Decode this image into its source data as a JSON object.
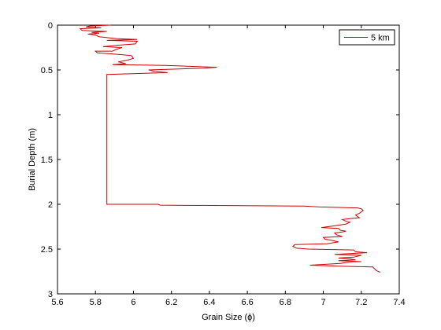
{
  "chart_data": {
    "type": "line",
    "title": "",
    "xlabel": "Grain Size (ɸ)",
    "ylabel": "Burial Depth (m)",
    "xlim": [
      5.6,
      7.4
    ],
    "ylim": [
      0,
      3
    ],
    "y_reversed": true,
    "grid": false,
    "legend_position": "top-right",
    "x_ticks": [
      "5.6",
      "5.8",
      "6",
      "6.2",
      "6.4",
      "6.6",
      "6.8",
      "7",
      "7.2",
      "7.4"
    ],
    "y_ticks": [
      "0",
      "0.5",
      "1",
      "1.5",
      "2",
      "2.5",
      "3"
    ],
    "series": [
      {
        "name": "5 km",
        "color": "#cc0000",
        "points": [
          [
            5.88,
            0.0
          ],
          [
            5.77,
            0.01
          ],
          [
            5.75,
            0.02
          ],
          [
            5.83,
            0.03
          ],
          [
            5.72,
            0.04
          ],
          [
            5.73,
            0.06
          ],
          [
            5.86,
            0.07
          ],
          [
            5.78,
            0.08
          ],
          [
            5.82,
            0.09
          ],
          [
            5.76,
            0.1
          ],
          [
            5.8,
            0.11
          ],
          [
            5.82,
            0.13
          ],
          [
            5.91,
            0.15
          ],
          [
            6.02,
            0.16
          ],
          [
            5.86,
            0.17
          ],
          [
            6.02,
            0.18
          ],
          [
            6.01,
            0.21
          ],
          [
            5.94,
            0.22
          ],
          [
            5.84,
            0.24
          ],
          [
            5.94,
            0.25
          ],
          [
            5.91,
            0.27
          ],
          [
            5.89,
            0.29
          ],
          [
            5.8,
            0.29
          ],
          [
            5.81,
            0.31
          ],
          [
            5.94,
            0.33
          ],
          [
            5.99,
            0.34
          ],
          [
            6.0,
            0.37
          ],
          [
            5.97,
            0.39
          ],
          [
            5.92,
            0.41
          ],
          [
            5.96,
            0.43
          ],
          [
            5.89,
            0.44
          ],
          [
            6.17,
            0.45
          ],
          [
            6.44,
            0.47
          ],
          [
            6.37,
            0.48
          ],
          [
            6.08,
            0.5
          ],
          [
            6.12,
            0.52
          ],
          [
            6.18,
            0.53
          ],
          [
            5.86,
            0.55
          ],
          [
            5.86,
            1.0
          ],
          [
            5.86,
            1.5
          ],
          [
            5.86,
            2.0
          ],
          [
            6.13,
            2.0
          ],
          [
            6.14,
            2.01
          ],
          [
            6.9,
            2.02
          ],
          [
            6.98,
            2.03
          ],
          [
            7.18,
            2.04
          ],
          [
            7.2,
            2.05
          ],
          [
            7.21,
            2.07
          ],
          [
            7.19,
            2.1
          ],
          [
            7.17,
            2.12
          ],
          [
            7.19,
            2.15
          ],
          [
            7.14,
            2.16
          ],
          [
            7.1,
            2.17
          ],
          [
            7.12,
            2.19
          ],
          [
            7.14,
            2.2
          ],
          [
            7.12,
            2.22
          ],
          [
            7.06,
            2.24
          ],
          [
            6.99,
            2.26
          ],
          [
            7.08,
            2.27
          ],
          [
            7.09,
            2.29
          ],
          [
            7.12,
            2.3
          ],
          [
            7.1,
            2.31
          ],
          [
            7.06,
            2.32
          ],
          [
            7.07,
            2.34
          ],
          [
            7.1,
            2.36
          ],
          [
            7.0,
            2.37
          ],
          [
            7.01,
            2.39
          ],
          [
            7.04,
            2.4
          ],
          [
            7.08,
            2.42
          ],
          [
            7.02,
            2.44
          ],
          [
            6.85,
            2.45
          ],
          [
            6.84,
            2.47
          ],
          [
            6.86,
            2.49
          ],
          [
            6.92,
            2.5
          ],
          [
            7.16,
            2.51
          ],
          [
            7.17,
            2.53
          ],
          [
            7.23,
            2.54
          ],
          [
            7.14,
            2.55
          ],
          [
            7.06,
            2.56
          ],
          [
            7.2,
            2.57
          ],
          [
            7.16,
            2.59
          ],
          [
            7.08,
            2.6
          ],
          [
            7.14,
            2.61
          ],
          [
            7.17,
            2.62
          ],
          [
            7.08,
            2.63
          ],
          [
            7.2,
            2.64
          ],
          [
            7.12,
            2.65
          ],
          [
            7.09,
            2.66
          ],
          [
            6.93,
            2.68
          ],
          [
            7.08,
            2.69
          ],
          [
            7.26,
            2.7
          ],
          [
            7.27,
            2.72
          ],
          [
            7.28,
            2.74
          ],
          [
            7.3,
            2.76
          ]
        ]
      }
    ]
  }
}
